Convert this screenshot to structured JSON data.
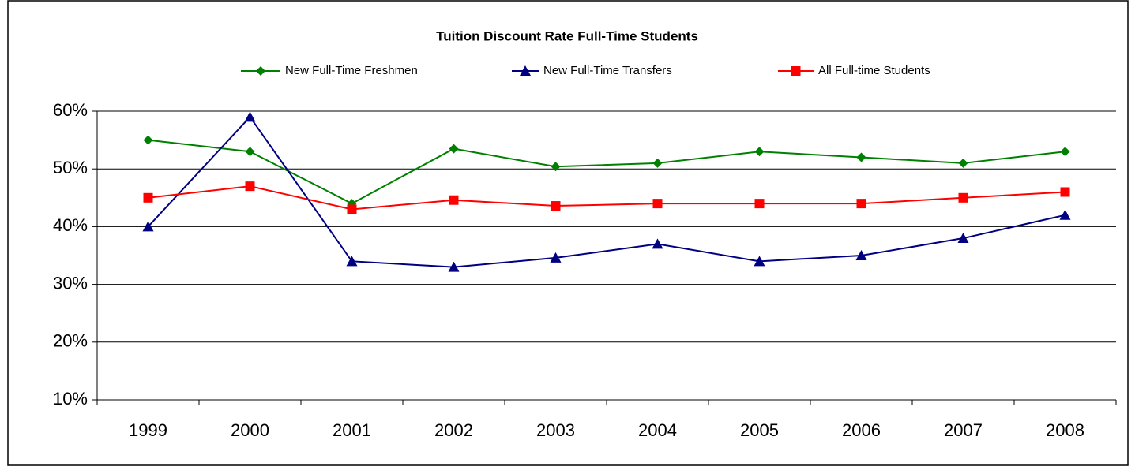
{
  "chart_data": {
    "type": "line",
    "title": "Tuition Discount Rate Full-Time Students",
    "categories": [
      "1999",
      "2000",
      "2001",
      "2002",
      "2003",
      "2004",
      "2005",
      "2006",
      "2007",
      "2008"
    ],
    "series": [
      {
        "name": "New Full-Time Freshmen",
        "color": "#008000",
        "marker": "diamond",
        "values": [
          55,
          53,
          44,
          53.5,
          50.4,
          51,
          53,
          52,
          51,
          53
        ]
      },
      {
        "name": "New Full-Time Transfers",
        "color": "#000080",
        "marker": "triangle",
        "values": [
          40,
          59,
          34,
          33,
          34.6,
          37,
          34,
          35,
          38,
          42
        ]
      },
      {
        "name": "All Full-time Students",
        "color": "#ff0000",
        "marker": "square",
        "values": [
          45,
          47,
          43,
          44.6,
          43.6,
          44,
          44,
          44,
          45,
          46
        ]
      }
    ],
    "ylim": [
      10,
      60
    ],
    "yticks": [
      {
        "value": 10,
        "label": "10%"
      },
      {
        "value": 20,
        "label": "20%"
      },
      {
        "value": 30,
        "label": "30%"
      },
      {
        "value": 40,
        "label": "40%"
      },
      {
        "value": 50,
        "label": "50%"
      },
      {
        "value": 60,
        "label": "60%"
      }
    ],
    "grid": true,
    "legend": "top"
  }
}
